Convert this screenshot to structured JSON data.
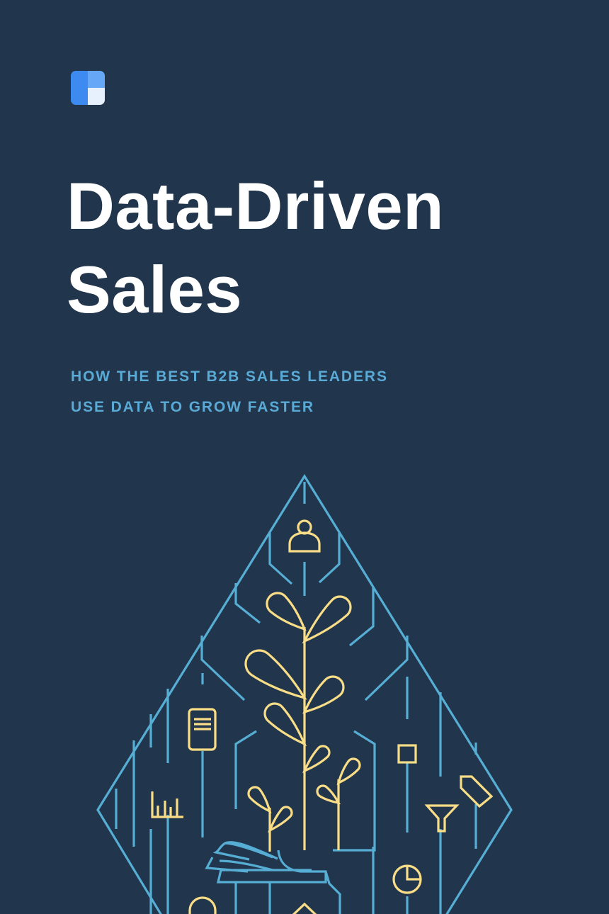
{
  "cover": {
    "logo_icon": "dashboard-squares-logo",
    "title_line1": "Data-Driven",
    "title_line2": "Sales",
    "subtitle_line1": "HOW THE BEST B2B SALES LEADERS",
    "subtitle_line2": "USE DATA TO GROW FASTER"
  },
  "colors": {
    "background": "#21364d",
    "title": "#ffffff",
    "subtitle": "#5aaad6",
    "line_blue": "#56aed4",
    "line_yellow": "#f9dd87"
  },
  "illustration": {
    "description_icons": [
      "person-icon",
      "document-icon",
      "bar-chart-icon",
      "square-icon",
      "tag-icon",
      "funnel-icon",
      "pie-chart-icon",
      "circle-icon",
      "diamond-icon",
      "plant-icon",
      "hand-icon"
    ]
  }
}
